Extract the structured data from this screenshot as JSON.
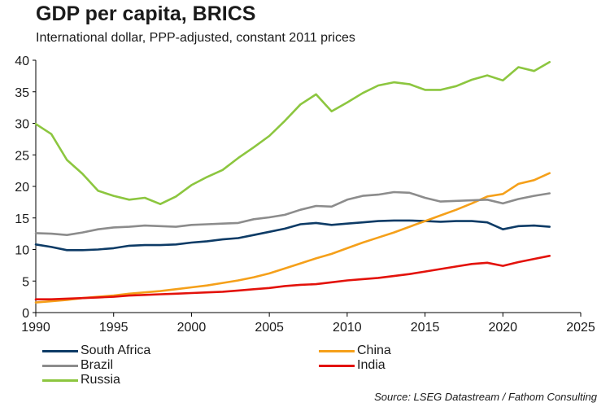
{
  "chart_data": {
    "type": "line",
    "title": "GDP per capita, BRICS",
    "subtitle": "International dollar, PPP-adjusted, constant 2011 prices",
    "source": "Source: LSEG Datastream / Fathom Consulting",
    "xlabel": "",
    "ylabel": "",
    "xlim": [
      1990,
      2025
    ],
    "ylim": [
      0,
      40
    ],
    "x_ticks": [
      1990,
      1995,
      2000,
      2005,
      2010,
      2015,
      2020,
      2025
    ],
    "y_ticks": [
      0,
      5,
      10,
      15,
      20,
      25,
      30,
      35,
      40
    ],
    "grid": false,
    "legend_position": "bottom",
    "x": [
      1990,
      1991,
      1992,
      1993,
      1994,
      1995,
      1996,
      1997,
      1998,
      1999,
      2000,
      2001,
      2002,
      2003,
      2004,
      2005,
      2006,
      2007,
      2008,
      2009,
      2010,
      2011,
      2012,
      2013,
      2014,
      2015,
      2016,
      2017,
      2018,
      2019,
      2020,
      2021,
      2022,
      2023
    ],
    "series": [
      {
        "name": "South Africa",
        "color": "#0d3b66",
        "values": [
          10.8,
          10.4,
          9.9,
          9.9,
          10.0,
          10.2,
          10.6,
          10.7,
          10.7,
          10.8,
          11.1,
          11.3,
          11.6,
          11.8,
          12.3,
          12.8,
          13.3,
          14.0,
          14.2,
          13.9,
          14.1,
          14.3,
          14.5,
          14.6,
          14.6,
          14.5,
          14.4,
          14.5,
          14.5,
          14.3,
          13.2,
          13.7,
          13.8,
          13.6
        ]
      },
      {
        "name": "China",
        "color": "#f5a01a",
        "values": [
          1.6,
          1.8,
          2.0,
          2.3,
          2.5,
          2.7,
          3.0,
          3.2,
          3.4,
          3.7,
          4.0,
          4.3,
          4.7,
          5.1,
          5.6,
          6.2,
          7.0,
          7.8,
          8.6,
          9.3,
          10.2,
          11.1,
          11.9,
          12.7,
          13.6,
          14.5,
          15.4,
          16.3,
          17.3,
          18.4,
          18.8,
          20.4,
          21.0,
          22.1
        ]
      },
      {
        "name": "Brazil",
        "color": "#8c8c8c",
        "values": [
          12.6,
          12.5,
          12.3,
          12.7,
          13.2,
          13.5,
          13.6,
          13.8,
          13.7,
          13.6,
          13.9,
          14.0,
          14.1,
          14.2,
          14.8,
          15.1,
          15.5,
          16.3,
          16.9,
          16.8,
          17.9,
          18.5,
          18.7,
          19.1,
          19.0,
          18.2,
          17.6,
          17.7,
          17.8,
          17.9,
          17.3,
          18.0,
          18.5,
          18.9
        ]
      },
      {
        "name": "India",
        "color": "#e3120b",
        "values": [
          2.1,
          2.1,
          2.2,
          2.3,
          2.4,
          2.5,
          2.7,
          2.8,
          2.9,
          3.0,
          3.1,
          3.2,
          3.3,
          3.5,
          3.7,
          3.9,
          4.2,
          4.4,
          4.5,
          4.8,
          5.1,
          5.3,
          5.5,
          5.8,
          6.1,
          6.5,
          6.9,
          7.3,
          7.7,
          7.9,
          7.4,
          8.0,
          8.5,
          9.0
        ]
      },
      {
        "name": "Russia",
        "color": "#8cc63f",
        "values": [
          29.9,
          28.3,
          24.2,
          22.0,
          19.3,
          18.5,
          17.9,
          18.2,
          17.2,
          18.4,
          20.2,
          21.5,
          22.6,
          24.5,
          26.2,
          28.0,
          30.4,
          33.0,
          34.6,
          31.9,
          33.3,
          34.8,
          36.0,
          36.5,
          36.2,
          35.3,
          35.3,
          35.9,
          36.9,
          37.6,
          36.8,
          38.9,
          38.3,
          39.7
        ]
      }
    ]
  }
}
